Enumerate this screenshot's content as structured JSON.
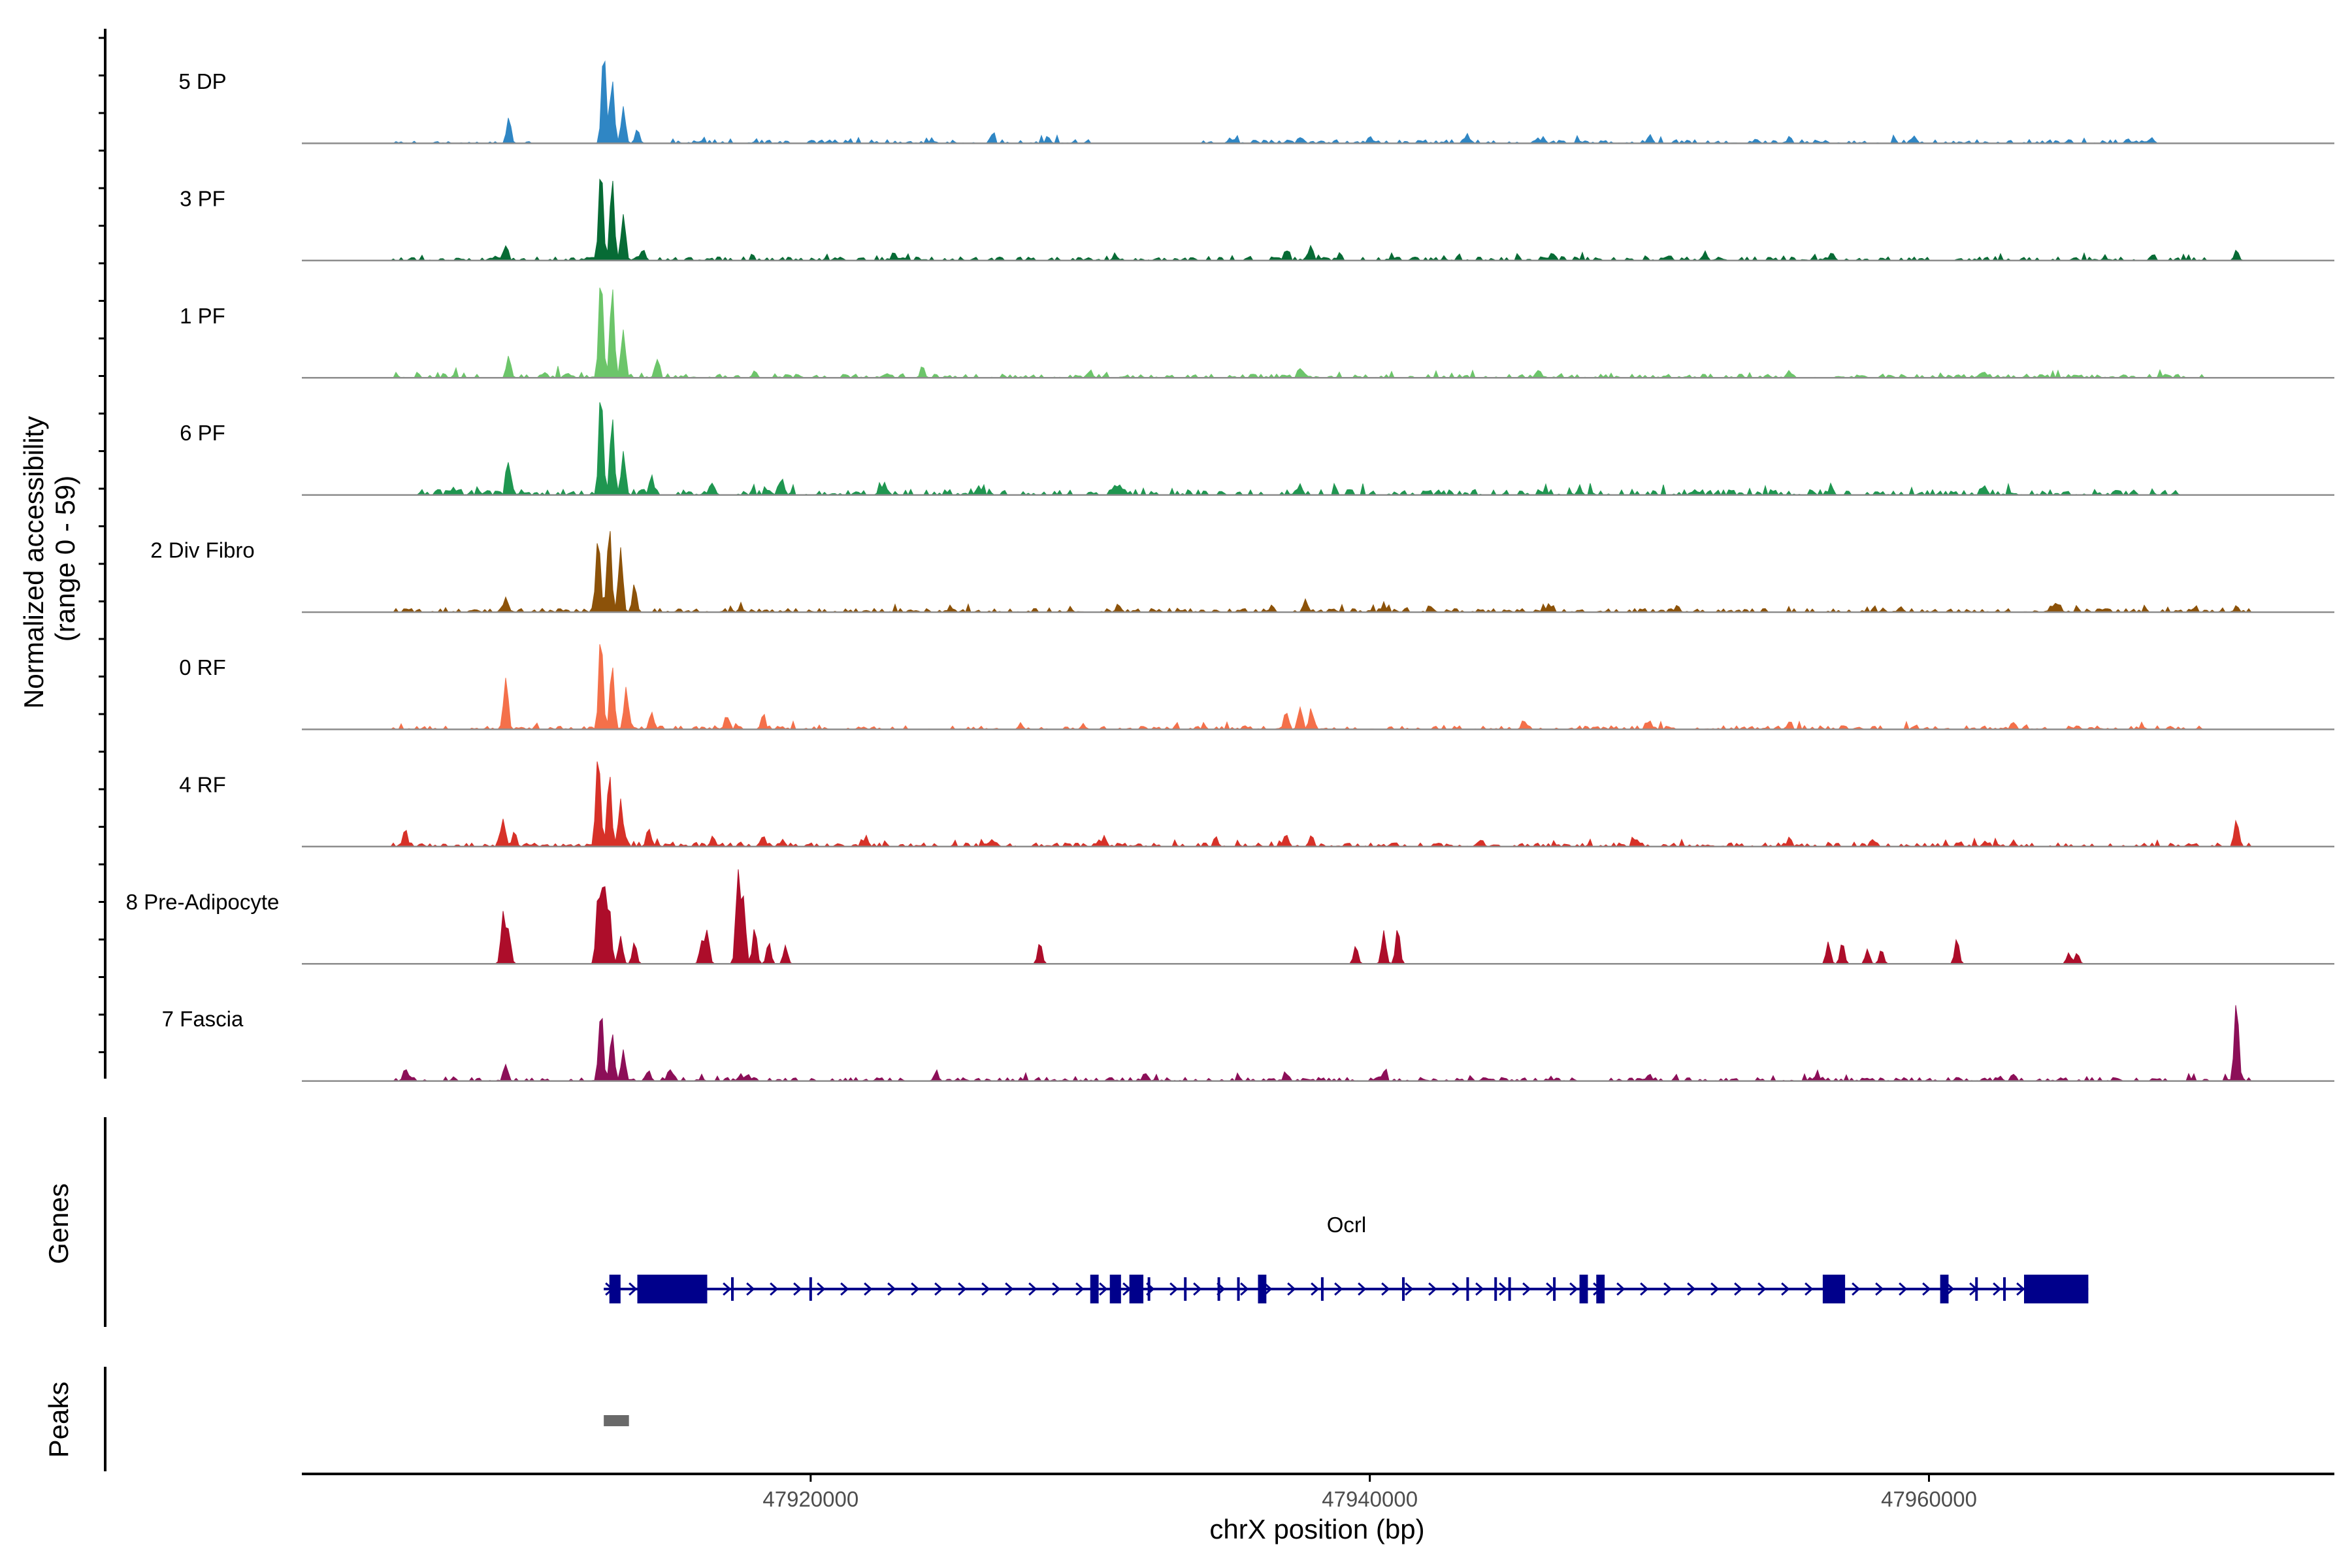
{
  "chart_data": {
    "type": "area",
    "title": "",
    "ylabel_line1": "Normalized accessibility",
    "ylabel_line2": "(range 0 - 59)",
    "yrange": [
      0,
      59
    ],
    "xlabel": "chrX position (bp)",
    "xrange": [
      47901800,
      47974500
    ],
    "x_ticks": [
      47920000,
      47940000,
      47960000
    ],
    "x_tick_labels": [
      "47920000",
      "47940000",
      "47960000"
    ],
    "tracks": [
      {
        "name": "5 DP",
        "color": "#2f86c4",
        "peaks": [
          [
            47909200,
            14
          ],
          [
            47912600,
            52
          ],
          [
            47912900,
            35
          ],
          [
            47913300,
            20
          ],
          [
            47913800,
            8
          ],
          [
            47926500,
            3
          ],
          [
            47928500,
            3
          ],
          [
            47935000,
            3
          ],
          [
            47937500,
            3
          ],
          [
            47940000,
            4
          ],
          [
            47943500,
            4
          ],
          [
            47946000,
            3
          ],
          [
            47950000,
            4
          ],
          [
            47955000,
            3
          ],
          [
            47959500,
            3
          ],
          [
            47965000,
            2
          ],
          [
            47968000,
            2
          ]
        ],
        "noise": [
          [
            47905000,
            47910000,
            1
          ],
          [
            47915000,
            47930000,
            2
          ],
          [
            47934000,
            47968000,
            2
          ]
        ]
      },
      {
        "name": "3 PF",
        "color": "#076b35",
        "peaks": [
          [
            47909100,
            8
          ],
          [
            47912500,
            52
          ],
          [
            47912900,
            45
          ],
          [
            47913300,
            25
          ],
          [
            47914000,
            6
          ],
          [
            47923000,
            4
          ],
          [
            47937000,
            6
          ],
          [
            47937900,
            7
          ],
          [
            47946500,
            4
          ],
          [
            47952000,
            4
          ],
          [
            47956500,
            4
          ],
          [
            47968000,
            3
          ],
          [
            47971000,
            6
          ]
        ],
        "noise": [
          [
            47905000,
            47915000,
            2
          ],
          [
            47915000,
            47970000,
            2
          ]
        ]
      },
      {
        "name": "1 PF",
        "color": "#6cc56a",
        "peaks": [
          [
            47909200,
            12
          ],
          [
            47912500,
            56
          ],
          [
            47912900,
            50
          ],
          [
            47913300,
            26
          ],
          [
            47914500,
            10
          ],
          [
            47918000,
            4
          ],
          [
            47924000,
            5
          ],
          [
            47930000,
            4
          ],
          [
            47937500,
            5
          ],
          [
            47946000,
            4
          ],
          [
            47955000,
            4
          ],
          [
            47962000,
            3
          ]
        ],
        "noise": [
          [
            47905000,
            47915000,
            3
          ],
          [
            47915000,
            47970000,
            2
          ]
        ]
      },
      {
        "name": "6 PF",
        "color": "#1f9650",
        "peaks": [
          [
            47909200,
            18
          ],
          [
            47912500,
            55
          ],
          [
            47912900,
            40
          ],
          [
            47913300,
            22
          ],
          [
            47914300,
            10
          ],
          [
            47916500,
            6
          ],
          [
            47919000,
            6
          ],
          [
            47922500,
            5
          ],
          [
            47926000,
            5
          ],
          [
            47931000,
            5
          ],
          [
            47937500,
            6
          ],
          [
            47947500,
            4
          ],
          [
            47956500,
            5
          ],
          [
            47962000,
            5
          ]
        ],
        "noise": [
          [
            47906000,
            47916000,
            3
          ],
          [
            47916000,
            47969000,
            3
          ]
        ]
      },
      {
        "name": "2 Div Fibro",
        "color": "#8c5209",
        "peaks": [
          [
            47909100,
            8
          ],
          [
            47912400,
            42
          ],
          [
            47912800,
            47
          ],
          [
            47913200,
            35
          ],
          [
            47913700,
            15
          ],
          [
            47917500,
            3
          ],
          [
            47925000,
            3
          ],
          [
            47931000,
            4
          ],
          [
            47936500,
            4
          ],
          [
            47937700,
            7
          ],
          [
            47940500,
            4
          ],
          [
            47946500,
            3
          ],
          [
            47951000,
            4
          ],
          [
            47959000,
            3
          ],
          [
            47964500,
            5
          ],
          [
            47971000,
            3
          ]
        ],
        "noise": [
          [
            47905000,
            47915000,
            2
          ],
          [
            47915000,
            47971500,
            2
          ]
        ]
      },
      {
        "name": "0 RF",
        "color": "#f4704a",
        "peaks": [
          [
            47909100,
            28
          ],
          [
            47912500,
            50
          ],
          [
            47912900,
            35
          ],
          [
            47913400,
            20
          ],
          [
            47914300,
            9
          ],
          [
            47917000,
            7
          ],
          [
            47918300,
            8
          ],
          [
            47937000,
            10
          ],
          [
            47937500,
            12
          ],
          [
            47937900,
            10
          ],
          [
            47945500,
            5
          ],
          [
            47950000,
            5
          ],
          [
            47955000,
            4
          ],
          [
            47963000,
            4
          ]
        ],
        "noise": [
          [
            47905000,
            47915000,
            2
          ],
          [
            47915000,
            47970000,
            2
          ]
        ]
      },
      {
        "name": "4 RF",
        "color": "#d73128",
        "peaks": [
          [
            47905500,
            10
          ],
          [
            47909000,
            15
          ],
          [
            47909400,
            8
          ],
          [
            47912400,
            52
          ],
          [
            47912800,
            40
          ],
          [
            47913200,
            25
          ],
          [
            47914200,
            10
          ],
          [
            47916500,
            6
          ],
          [
            47918300,
            6
          ],
          [
            47919000,
            4
          ],
          [
            47922000,
            4
          ],
          [
            47926500,
            4
          ],
          [
            47930500,
            6
          ],
          [
            47934500,
            4
          ],
          [
            47937000,
            7
          ],
          [
            47937900,
            6
          ],
          [
            47944000,
            4
          ],
          [
            47949500,
            4
          ],
          [
            47955000,
            4
          ],
          [
            47958000,
            4
          ],
          [
            47962000,
            3
          ],
          [
            47971000,
            15
          ]
        ],
        "noise": [
          [
            47905000,
            47915000,
            2
          ],
          [
            47915000,
            47971500,
            2
          ]
        ]
      },
      {
        "name": "8 Pre-Adipocyte",
        "color": "#ad0d2a",
        "peaks": [
          [
            47909000,
            28
          ],
          [
            47909200,
            18
          ],
          [
            47912400,
            38
          ],
          [
            47912600,
            45
          ],
          [
            47912800,
            30
          ],
          [
            47913200,
            15
          ],
          [
            47913700,
            12
          ],
          [
            47916100,
            12
          ],
          [
            47916300,
            18
          ],
          [
            47917400,
            50
          ],
          [
            47917600,
            35
          ],
          [
            47918000,
            20
          ],
          [
            47918500,
            12
          ],
          [
            47919100,
            10
          ],
          [
            47928200,
            12
          ],
          [
            47939500,
            10
          ],
          [
            47940500,
            18
          ],
          [
            47941000,
            20
          ],
          [
            47956400,
            12
          ],
          [
            47956900,
            12
          ],
          [
            47957800,
            8
          ],
          [
            47958300,
            8
          ],
          [
            47961000,
            14
          ],
          [
            47965000,
            6
          ],
          [
            47965300,
            6
          ]
        ],
        "noise": []
      },
      {
        "name": "7 Fascia",
        "color": "#8c0f58",
        "peaks": [
          [
            47905500,
            7
          ],
          [
            47909100,
            9
          ],
          [
            47912500,
            38
          ],
          [
            47912900,
            26
          ],
          [
            47913300,
            17
          ],
          [
            47914200,
            6
          ],
          [
            47915000,
            5
          ],
          [
            47917500,
            4
          ],
          [
            47924500,
            4
          ],
          [
            47932000,
            4
          ],
          [
            47937000,
            4
          ],
          [
            47940500,
            5
          ],
          [
            47950000,
            4
          ],
          [
            47956000,
            4
          ],
          [
            47963000,
            3
          ],
          [
            47971000,
            44
          ]
        ],
        "noise": [
          [
            47905000,
            47915000,
            2
          ],
          [
            47915000,
            47971500,
            2
          ]
        ]
      }
    ],
    "genes": {
      "title": "Genes",
      "gene_name": "Ocrl",
      "color": "#00008b",
      "start": 47912600,
      "end": 47965700,
      "exons": [
        [
          47912800,
          47913200
        ],
        [
          47913800,
          47916300
        ],
        [
          47930000,
          47930300
        ],
        [
          47930700,
          47931100
        ],
        [
          47931400,
          47931900
        ],
        [
          47936000,
          47936300
        ],
        [
          47947500,
          47947800
        ],
        [
          47948100,
          47948400
        ],
        [
          47956200,
          47957000
        ],
        [
          47960400,
          47960700
        ],
        [
          47963400,
          47965700
        ]
      ],
      "marks": [
        47917200,
        47920000,
        47932100,
        47933400,
        47934600,
        47935300,
        47938300,
        47941200,
        47943500,
        47944500,
        47945000,
        47946600,
        47961700,
        47962700
      ]
    },
    "peaks_track": {
      "title": "Peaks",
      "color": "#696969",
      "regions": [
        [
          47912600,
          47913500
        ]
      ]
    }
  }
}
